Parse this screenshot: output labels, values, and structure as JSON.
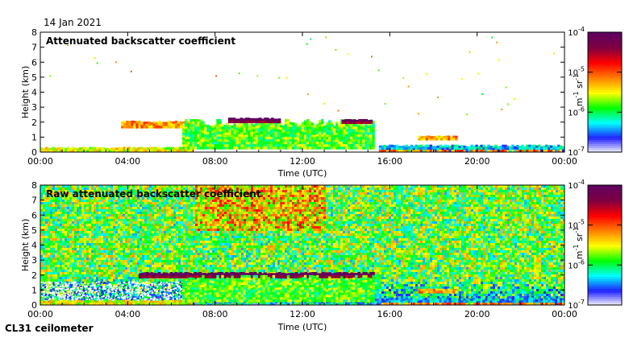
{
  "header": {
    "date": "14 Jan 2021"
  },
  "footer": {
    "instrument": "CL31 ceilometer"
  },
  "colors": {
    "colormap": [
      "#ffffff",
      "#2020ff",
      "#00ffff",
      "#00ff00",
      "#ffff00",
      "#ff8000",
      "#ff0000",
      "#800040",
      "#600060"
    ]
  },
  "chart_data": [
    {
      "type": "heatmap",
      "title": "Attenuated backscatter coefficient",
      "xlabel": "Time (UTC)",
      "ylabel": "Height (km)",
      "xticks": [
        "00:00",
        "04:00",
        "08:00",
        "12:00",
        "16:00",
        "20:00",
        "00:00"
      ],
      "xlim_hours": [
        0,
        24
      ],
      "yticks": [
        0,
        1,
        2,
        3,
        4,
        5,
        6,
        7,
        8
      ],
      "ylim": [
        0,
        8
      ],
      "grid": false,
      "colorbar": {
        "scale": "log",
        "range": [
          1e-07,
          0.0001
        ],
        "tick_labels": [
          "10^-4",
          "10^-5",
          "10^-6",
          "10^-7"
        ],
        "unit": "m-1 sr-1"
      },
      "features": [
        {
          "kind": "boundary_layer",
          "start_h": 0,
          "end_h": 7,
          "base_km": 0,
          "top_km": 0.35,
          "log10_value": -5.5
        },
        {
          "kind": "cloud_layer",
          "start_h": 3.7,
          "end_h": 7.5,
          "base_km": 1.6,
          "top_km": 2.1,
          "log10_value": -5.2
        },
        {
          "kind": "cloud_layer",
          "start_h": 6.5,
          "end_h": 15.3,
          "base_km": 0.2,
          "top_km": 2.2,
          "log10_value": -5.8
        },
        {
          "kind": "cloud_base",
          "start_h": 8.6,
          "end_h": 11,
          "base_km": 1.95,
          "top_km": 2.3,
          "log10_value": -4.2
        },
        {
          "kind": "cloud_base",
          "start_h": 13.8,
          "end_h": 15.2,
          "base_km": 1.9,
          "top_km": 2.2,
          "log10_value": -4.3
        },
        {
          "kind": "surface_layer",
          "start_h": 15.5,
          "end_h": 24,
          "base_km": 0,
          "top_km": 0.5,
          "log10_value": -6.3
        },
        {
          "kind": "cloud_layer",
          "start_h": 17.3,
          "end_h": 19.1,
          "base_km": 0.8,
          "top_km": 1.1,
          "log10_value": -5.2
        },
        {
          "kind": "sparse_returns",
          "start_h": 0,
          "end_h": 24,
          "base_km": 2.5,
          "top_km": 7.8,
          "log10_value": -5.5
        }
      ]
    },
    {
      "type": "heatmap",
      "title": "Raw attenuated backscatter coefficient",
      "xlabel": "Time (UTC)",
      "ylabel": "Height (km)",
      "xticks": [
        "00:00",
        "04:00",
        "08:00",
        "12:00",
        "16:00",
        "20:00",
        "00:00"
      ],
      "xlim_hours": [
        0,
        24
      ],
      "yticks": [
        0,
        1,
        2,
        3,
        4,
        5,
        6,
        7,
        8
      ],
      "ylim": [
        0,
        8
      ],
      "grid": false,
      "colorbar": {
        "scale": "log",
        "range": [
          1e-07,
          0.0001
        ],
        "tick_labels": [
          "10^-4",
          "10^-5",
          "10^-6",
          "10^-7"
        ],
        "unit": "m-1 sr-1"
      },
      "features": [
        {
          "kind": "noise_background",
          "start_h": 0,
          "end_h": 24,
          "base_km": 0,
          "top_km": 8,
          "log10_value": -5.8
        },
        {
          "kind": "clear_layer",
          "start_h": 0,
          "end_h": 7,
          "base_km": 0.2,
          "top_km": 1.6,
          "log10_value": -7
        },
        {
          "kind": "boundary_layer",
          "start_h": 0,
          "end_h": 7,
          "base_km": 0,
          "top_km": 0.35,
          "log10_value": -5.5
        },
        {
          "kind": "cloud_base",
          "start_h": 4.5,
          "end_h": 15.3,
          "base_km": 1.8,
          "top_km": 2.2,
          "log10_value": -4.2
        },
        {
          "kind": "cloud_layer",
          "start_h": 6.5,
          "end_h": 15.3,
          "base_km": 0.2,
          "top_km": 2,
          "log10_value": -5.8
        },
        {
          "kind": "surface_layer",
          "start_h": 15.5,
          "end_h": 24,
          "base_km": 0,
          "top_km": 0.5,
          "log10_value": -6.3
        },
        {
          "kind": "cloud_layer",
          "start_h": 17.3,
          "end_h": 19.1,
          "base_km": 0.8,
          "top_km": 1.1,
          "log10_value": -5.2
        }
      ]
    }
  ]
}
